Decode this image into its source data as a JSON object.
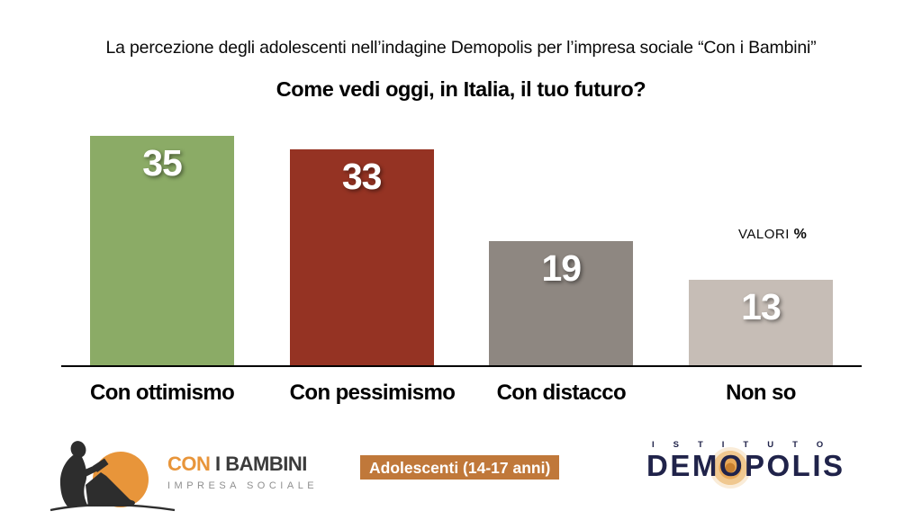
{
  "header": {
    "subtitle": "La percezione degli adolescenti nell’indagine Demopolis per l’impresa sociale “Con i Bambini”",
    "title": "Come vedi oggi, in Italia, il tuo futuro?"
  },
  "chart_data": {
    "type": "bar",
    "title": "Come vedi oggi, in Italia, il tuo futuro?",
    "categories": [
      "Con ottimismo",
      "Con pessimismo",
      "Con distacco",
      "Non so"
    ],
    "values": [
      35,
      33,
      19,
      13
    ],
    "colors": [
      "#8bab66",
      "#953323",
      "#8e8781",
      "#c6bdb6"
    ],
    "unit_note": "VALORI %",
    "value_label_position": "inside-top",
    "value_label_color": "#ffffff",
    "ylim": [
      0,
      36.5
    ],
    "grid": false,
    "legend": false,
    "baseline_axis": true
  },
  "annotations": {
    "valori_label": "VALORI",
    "percent_symbol": "%"
  },
  "footer": {
    "conibambini": {
      "line1_accent": "CON",
      "line1_rest": " I BAMBINI",
      "line2": "IMPRESA SOCIALE",
      "accent_color": "#e8953a"
    },
    "badge": {
      "label": "Adolescenti (14-17 anni)",
      "background": "#c0783a"
    },
    "demopolis": {
      "top": "ISTITUTO",
      "name": "DEMOPOLIS",
      "navy": "#20234a"
    }
  }
}
